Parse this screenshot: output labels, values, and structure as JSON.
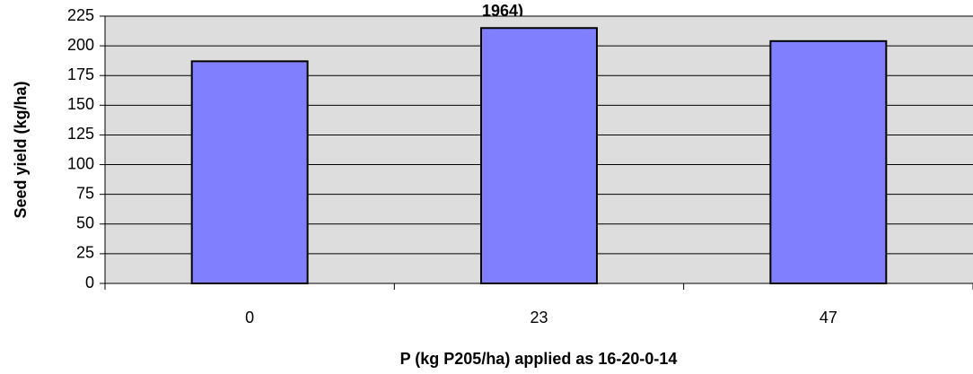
{
  "chart_data": {
    "type": "bar",
    "title": "1964)",
    "x_label": "P (kg P205/ha) applied as 16-20-0-14",
    "y_label": "Seed yield (kg/ha)",
    "categories": [
      "0",
      "23",
      "47"
    ],
    "values": [
      187,
      215,
      204
    ],
    "color": "#8080ff",
    "ylim": [
      0,
      225
    ],
    "yticks": [
      0,
      25,
      50,
      75,
      100,
      125,
      150,
      175,
      200,
      225
    ],
    "grid": true
  }
}
